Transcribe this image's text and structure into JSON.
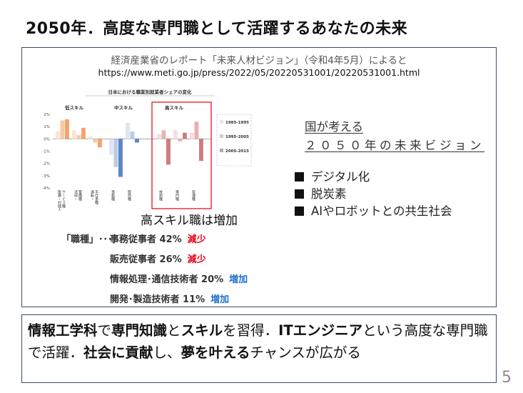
{
  "slide": {
    "title": "2050年．高度な専門職として活躍するあなたの未来",
    "source_line1": "経済産業省のレポート「未来人材ビジョン」（令和4年5月）によると",
    "source_line2": "https://www.meti.go.jp/press/2022/05/20220531001/20220531001.html",
    "vision_line1": "国が考える",
    "vision_line2": "２０５０年の未来ビジョン",
    "bullets": [
      "デジタル化",
      "脱炭素",
      "AIやロボットとの共生社会"
    ],
    "highskill_note": "高スキル職は増加",
    "jobs_label": "「職種」･･･",
    "jobs": [
      {
        "name": "事務従事者 42%",
        "change": "減少",
        "direction": "down"
      },
      {
        "name": "販売従事者 26%",
        "change": "減少",
        "direction": "down"
      },
      {
        "name": "情報処理･通信技術者 20%",
        "change": "増加",
        "direction": "up"
      },
      {
        "name": "開発･製造技術者 11%",
        "change": "増加",
        "direction": "up"
      }
    ],
    "bottom_segments": [
      {
        "text": "情報工学科",
        "bold": true
      },
      {
        "text": "で",
        "bold": false
      },
      {
        "text": "専門知識",
        "bold": true
      },
      {
        "text": "と",
        "bold": false
      },
      {
        "text": "スキル",
        "bold": true
      },
      {
        "text": "を習得．",
        "bold": false
      },
      {
        "text": "ITエンジニア",
        "bold": true
      },
      {
        "text": "という高度な専門職で活躍．",
        "bold": false
      },
      {
        "text": "社会に貢献",
        "bold": true
      },
      {
        "text": "し、",
        "bold": false
      },
      {
        "text": "夢を叶える",
        "bold": true
      },
      {
        "text": "チャンスが広がる",
        "bold": false
      }
    ],
    "page_number": "5",
    "colors": {
      "decrease": "#e60012",
      "increase": "#1e6fd0",
      "highlight_box": "#e60012",
      "frame": "#3b4a6b"
    }
  },
  "chart_data": {
    "type": "bar",
    "title": "日本における職業別就業者シェアの変化",
    "group_labels": [
      "低スキル",
      "中スキル",
      "高スキル"
    ],
    "categories": [
      "医療・対個人サービス職",
      "清掃・警備職",
      "運転・手仕事職",
      "事務職",
      "販売職",
      "技術職",
      "専門職",
      "管理職"
    ],
    "category_groups": [
      0,
      0,
      0,
      1,
      1,
      2,
      2,
      2
    ],
    "category_display": [
      "医療・対個人\nサービス職",
      "清掃・\n警備職",
      "運転・\n手仕事職",
      "事務職",
      "販売職",
      "技術職",
      "専門職",
      "管理職"
    ],
    "series": [
      {
        "name": "1985-1995",
        "color": "#f5cfae",
        "values": [
          0.6,
          0.7,
          0.2,
          -1.3,
          1.3,
          0.4,
          0.7,
          0.5
        ]
      },
      {
        "name": "1995-2005",
        "color": "#f2b48a",
        "values": [
          1.5,
          0.3,
          -0.3,
          -2.3,
          0.6,
          0.7,
          -0.2,
          1.4
        ]
      },
      {
        "name": "2005-2015",
        "color": "#e07b56",
        "values": [
          1.6,
          0.9,
          -0.7,
          -3.1,
          -0.3,
          -2.1,
          0.5,
          -1.8
        ]
      }
    ],
    "series_colors_by_group": [
      [
        "#fbe3d0",
        "#f7c8a4",
        "#f4a36b"
      ],
      [
        "#dde6f2",
        "#bccbe4",
        "#5b86c8"
      ],
      [
        "#f6dede",
        "#e9b1b1",
        "#cf7c7c"
      ]
    ],
    "ylim": [
      -4,
      2
    ],
    "yticks": [
      2,
      1,
      0,
      -1,
      -2,
      -3,
      -4
    ],
    "ytick_labels": [
      "2%",
      "1%",
      "0%",
      "-1%",
      "-2%",
      "-3%",
      "-4%"
    ],
    "highlighted_group": "高スキル",
    "legend_position": "right",
    "grid": false
  }
}
